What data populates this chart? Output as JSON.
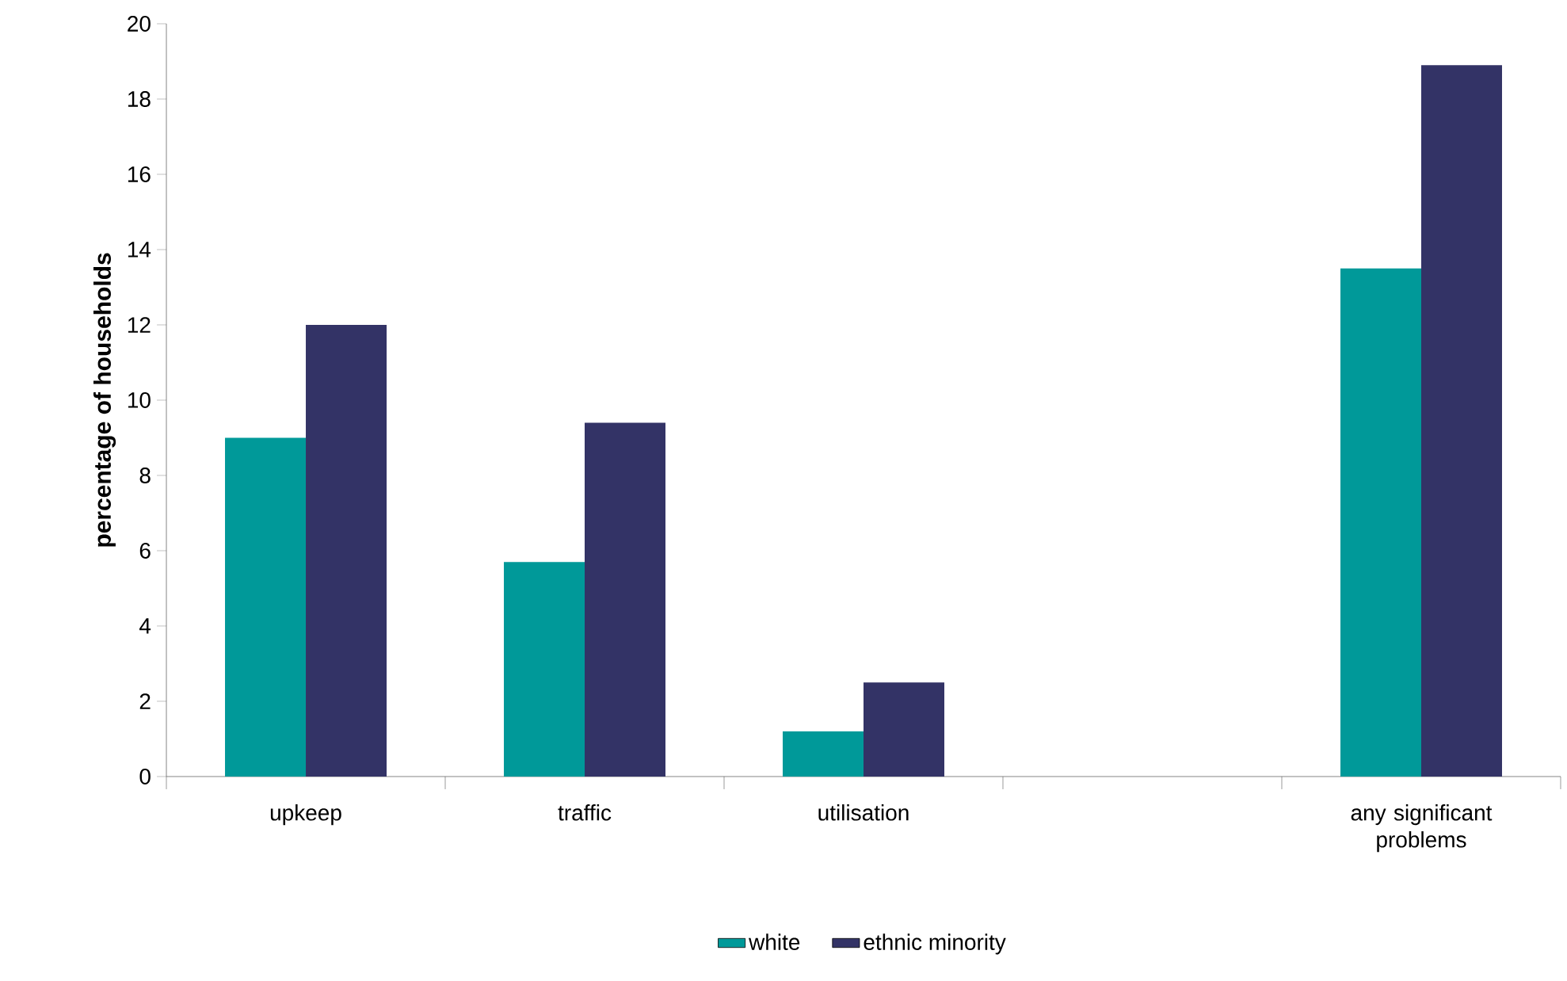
{
  "chart_data": {
    "type": "bar",
    "ylabel": "percentage of households",
    "categories": [
      "upkeep",
      "traffic",
      "utilisation",
      null,
      "any significant problems"
    ],
    "series": [
      {
        "name": "white",
        "color": "#009999",
        "values": [
          9.0,
          5.7,
          1.2,
          null,
          13.5
        ]
      },
      {
        "name": "ethnic minority",
        "color": "#333366",
        "values": [
          12.0,
          9.4,
          2.5,
          null,
          18.9
        ]
      }
    ],
    "ylim": [
      0,
      20
    ],
    "yticks": [
      0,
      2,
      4,
      6,
      8,
      10,
      12,
      14,
      16,
      18,
      20
    ],
    "grid": false,
    "legend": "bottom"
  }
}
